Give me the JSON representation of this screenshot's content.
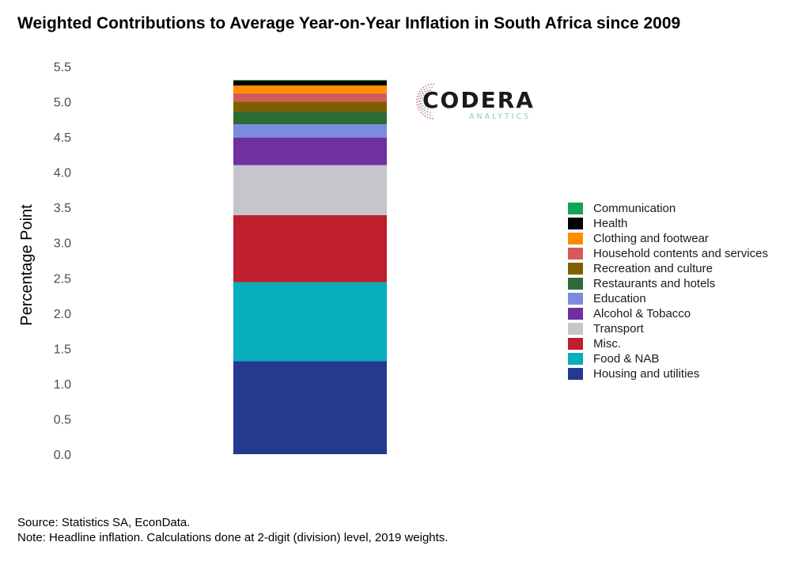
{
  "title": "Weighted Contributions to Average Year-on-Year Inflation in South Africa since 2009",
  "logo": {
    "word": "CODERA",
    "sub": "ANALYTICS"
  },
  "footer": {
    "source": "Source: Statistics SA, EconData.",
    "note": "Note: Headline inflation. Calculations done at 2-digit (division) level, 2019 weights."
  },
  "chart_data": {
    "type": "bar",
    "stacked": true,
    "ylabel": "Percentage Point",
    "ylim": [
      0,
      5.5
    ],
    "yticks": [
      "0.0",
      "0.5",
      "1.0",
      "1.5",
      "2.0",
      "2.5",
      "3.0",
      "3.5",
      "4.0",
      "4.5",
      "5.0",
      "5.5"
    ],
    "legend_position": "right",
    "grid": false,
    "series": [
      {
        "name": "Housing and utilities",
        "value": 1.32,
        "color": "#253a8e"
      },
      {
        "name": "Food & NAB",
        "value": 1.12,
        "color": "#05adbd"
      },
      {
        "name": "Misc.",
        "value": 0.95,
        "color": "#be1e2d"
      },
      {
        "name": "Transport",
        "value": 0.71,
        "color": "#c4c6cb"
      },
      {
        "name": "Alcohol & Tobacco",
        "value": 0.39,
        "color": "#7030a0"
      },
      {
        "name": "Education",
        "value": 0.19,
        "color": "#7b8cdc"
      },
      {
        "name": "Restaurants and hotels",
        "value": 0.18,
        "color": "#2d6b35"
      },
      {
        "name": "Recreation and culture",
        "value": 0.14,
        "color": "#7f6000"
      },
      {
        "name": "Household contents and services",
        "value": 0.12,
        "color": "#d55a5a"
      },
      {
        "name": "Clothing and footwear",
        "value": 0.11,
        "color": "#ff8c00"
      },
      {
        "name": "Health",
        "value": 0.07,
        "color": "#000000"
      },
      {
        "name": "Communication",
        "value": 0.01,
        "color": "#12a458"
      }
    ],
    "legend_order": [
      "Communication",
      "Health",
      "Clothing and footwear",
      "Household contents and services",
      "Recreation and culture",
      "Restaurants and hotels",
      "Education",
      "Alcohol & Tobacco",
      "Transport",
      "Misc.",
      "Food & NAB",
      "Housing and utilities"
    ]
  }
}
